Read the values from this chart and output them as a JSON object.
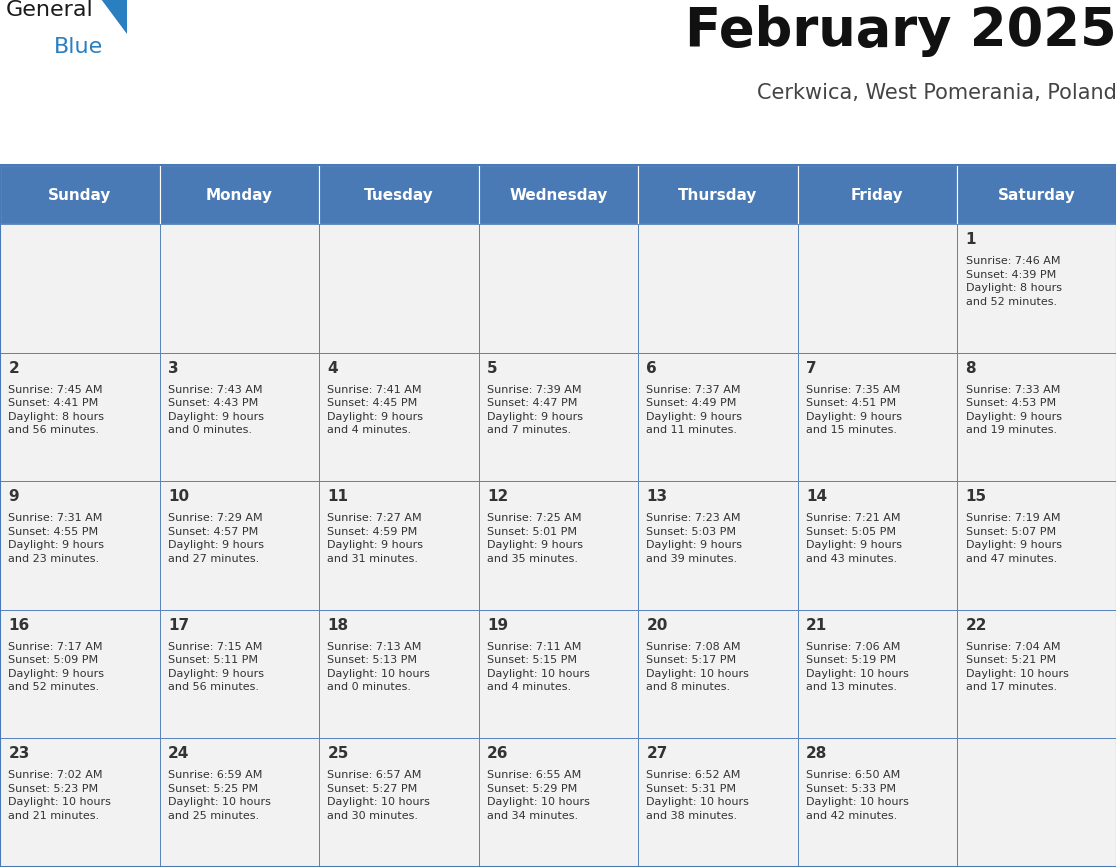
{
  "title": "February 2025",
  "subtitle": "Cerkwica, West Pomerania, Poland",
  "header_bg": "#4a7ab5",
  "header_text": "#ffffff",
  "cell_bg": "#f2f2f2",
  "border_color": "#4a7ab5",
  "text_color": "#333333",
  "days_of_week": [
    "Sunday",
    "Monday",
    "Tuesday",
    "Wednesday",
    "Thursday",
    "Friday",
    "Saturday"
  ],
  "weeks": [
    [
      {
        "day": "",
        "info": ""
      },
      {
        "day": "",
        "info": ""
      },
      {
        "day": "",
        "info": ""
      },
      {
        "day": "",
        "info": ""
      },
      {
        "day": "",
        "info": ""
      },
      {
        "day": "",
        "info": ""
      },
      {
        "day": "1",
        "info": "Sunrise: 7:46 AM\nSunset: 4:39 PM\nDaylight: 8 hours\nand 52 minutes."
      }
    ],
    [
      {
        "day": "2",
        "info": "Sunrise: 7:45 AM\nSunset: 4:41 PM\nDaylight: 8 hours\nand 56 minutes."
      },
      {
        "day": "3",
        "info": "Sunrise: 7:43 AM\nSunset: 4:43 PM\nDaylight: 9 hours\nand 0 minutes."
      },
      {
        "day": "4",
        "info": "Sunrise: 7:41 AM\nSunset: 4:45 PM\nDaylight: 9 hours\nand 4 minutes."
      },
      {
        "day": "5",
        "info": "Sunrise: 7:39 AM\nSunset: 4:47 PM\nDaylight: 9 hours\nand 7 minutes."
      },
      {
        "day": "6",
        "info": "Sunrise: 7:37 AM\nSunset: 4:49 PM\nDaylight: 9 hours\nand 11 minutes."
      },
      {
        "day": "7",
        "info": "Sunrise: 7:35 AM\nSunset: 4:51 PM\nDaylight: 9 hours\nand 15 minutes."
      },
      {
        "day": "8",
        "info": "Sunrise: 7:33 AM\nSunset: 4:53 PM\nDaylight: 9 hours\nand 19 minutes."
      }
    ],
    [
      {
        "day": "9",
        "info": "Sunrise: 7:31 AM\nSunset: 4:55 PM\nDaylight: 9 hours\nand 23 minutes."
      },
      {
        "day": "10",
        "info": "Sunrise: 7:29 AM\nSunset: 4:57 PM\nDaylight: 9 hours\nand 27 minutes."
      },
      {
        "day": "11",
        "info": "Sunrise: 7:27 AM\nSunset: 4:59 PM\nDaylight: 9 hours\nand 31 minutes."
      },
      {
        "day": "12",
        "info": "Sunrise: 7:25 AM\nSunset: 5:01 PM\nDaylight: 9 hours\nand 35 minutes."
      },
      {
        "day": "13",
        "info": "Sunrise: 7:23 AM\nSunset: 5:03 PM\nDaylight: 9 hours\nand 39 minutes."
      },
      {
        "day": "14",
        "info": "Sunrise: 7:21 AM\nSunset: 5:05 PM\nDaylight: 9 hours\nand 43 minutes."
      },
      {
        "day": "15",
        "info": "Sunrise: 7:19 AM\nSunset: 5:07 PM\nDaylight: 9 hours\nand 47 minutes."
      }
    ],
    [
      {
        "day": "16",
        "info": "Sunrise: 7:17 AM\nSunset: 5:09 PM\nDaylight: 9 hours\nand 52 minutes."
      },
      {
        "day": "17",
        "info": "Sunrise: 7:15 AM\nSunset: 5:11 PM\nDaylight: 9 hours\nand 56 minutes."
      },
      {
        "day": "18",
        "info": "Sunrise: 7:13 AM\nSunset: 5:13 PM\nDaylight: 10 hours\nand 0 minutes."
      },
      {
        "day": "19",
        "info": "Sunrise: 7:11 AM\nSunset: 5:15 PM\nDaylight: 10 hours\nand 4 minutes."
      },
      {
        "day": "20",
        "info": "Sunrise: 7:08 AM\nSunset: 5:17 PM\nDaylight: 10 hours\nand 8 minutes."
      },
      {
        "day": "21",
        "info": "Sunrise: 7:06 AM\nSunset: 5:19 PM\nDaylight: 10 hours\nand 13 minutes."
      },
      {
        "day": "22",
        "info": "Sunrise: 7:04 AM\nSunset: 5:21 PM\nDaylight: 10 hours\nand 17 minutes."
      }
    ],
    [
      {
        "day": "23",
        "info": "Sunrise: 7:02 AM\nSunset: 5:23 PM\nDaylight: 10 hours\nand 21 minutes."
      },
      {
        "day": "24",
        "info": "Sunrise: 6:59 AM\nSunset: 5:25 PM\nDaylight: 10 hours\nand 25 minutes."
      },
      {
        "day": "25",
        "info": "Sunrise: 6:57 AM\nSunset: 5:27 PM\nDaylight: 10 hours\nand 30 minutes."
      },
      {
        "day": "26",
        "info": "Sunrise: 6:55 AM\nSunset: 5:29 PM\nDaylight: 10 hours\nand 34 minutes."
      },
      {
        "day": "27",
        "info": "Sunrise: 6:52 AM\nSunset: 5:31 PM\nDaylight: 10 hours\nand 38 minutes."
      },
      {
        "day": "28",
        "info": "Sunrise: 6:50 AM\nSunset: 5:33 PM\nDaylight: 10 hours\nand 42 minutes."
      },
      {
        "day": "",
        "info": ""
      }
    ]
  ],
  "logo_text1": "General",
  "logo_text2": "Blue",
  "logo_color1": "#1a1a1a",
  "logo_color2": "#2a7fc1",
  "logo_triangle_color": "#2a7fc1",
  "title_fontsize": 38,
  "subtitle_fontsize": 15,
  "header_fontsize": 11,
  "day_num_fontsize": 11,
  "info_fontsize": 8
}
